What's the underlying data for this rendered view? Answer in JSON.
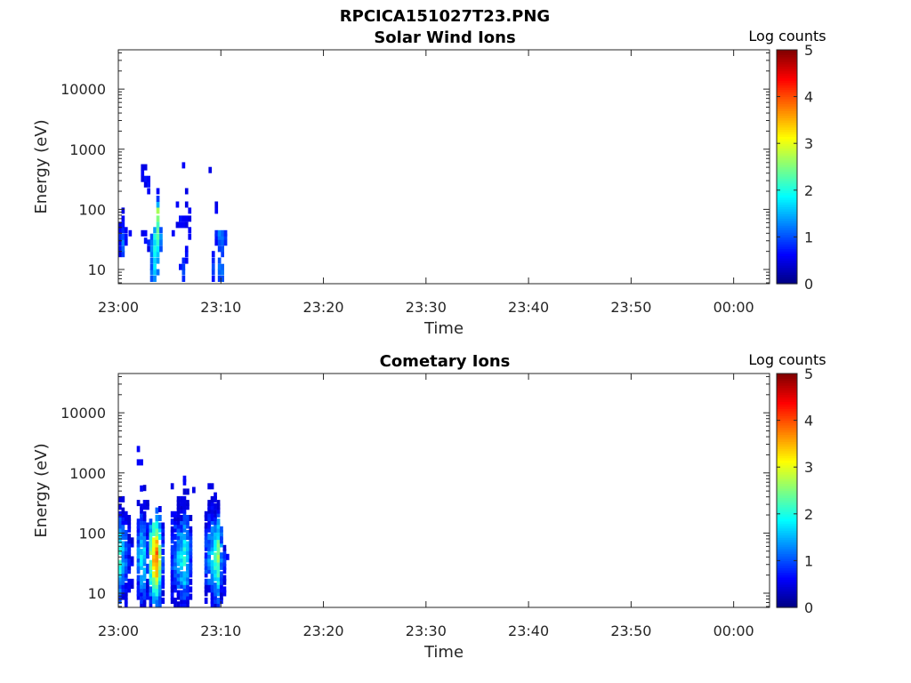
{
  "figure": {
    "title": "RPCICA151027T23.PNG"
  },
  "colors": {
    "axis": "#262626",
    "colormap": "jet"
  },
  "chart_data": [
    {
      "type": "heatmap",
      "title": "Solar Wind Ions",
      "xlabel": "Time",
      "ylabel": "Energy (eV)",
      "x_ticks": [
        "23:00",
        "23:10",
        "23:20",
        "23:30",
        "23:40",
        "23:50",
        "00:00"
      ],
      "xlim_minutes": [
        0,
        63.5
      ],
      "y_ticks": [
        "10",
        "100",
        "1000",
        "10000"
      ],
      "ylim": [
        5.8,
        45000
      ],
      "y_scale": "log",
      "colorbar": {
        "label": "Log counts",
        "ticks": [
          "0",
          "1",
          "2",
          "3",
          "4",
          "5"
        ],
        "range": [
          0,
          5
        ]
      },
      "cells": [
        [
          0.0,
          18,
          0.5
        ],
        [
          0.0,
          22,
          0.7
        ],
        [
          0.0,
          28,
          0.6
        ],
        [
          0.0,
          35,
          0.8
        ],
        [
          0.0,
          45,
          0.6
        ],
        [
          0.0,
          55,
          0.5
        ],
        [
          0.3,
          18,
          0.9
        ],
        [
          0.3,
          22,
          1.1
        ],
        [
          0.3,
          28,
          1.3
        ],
        [
          0.3,
          35,
          1.0
        ],
        [
          0.3,
          45,
          0.8
        ],
        [
          0.3,
          55,
          0.7
        ],
        [
          0.3,
          70,
          0.6
        ],
        [
          0.3,
          95,
          0.5
        ],
        [
          0.6,
          28,
          0.6
        ],
        [
          0.6,
          35,
          0.7
        ],
        [
          0.6,
          45,
          0.6
        ],
        [
          1.0,
          40,
          0.6
        ],
        [
          2.2,
          40,
          0.5
        ],
        [
          2.2,
          320,
          0.5
        ],
        [
          2.2,
          400,
          0.6
        ],
        [
          2.2,
          500,
          0.5
        ],
        [
          2.5,
          30,
          0.7
        ],
        [
          2.5,
          40,
          0.6
        ],
        [
          2.5,
          260,
          0.5
        ],
        [
          2.5,
          320,
          0.7
        ],
        [
          2.5,
          500,
          0.5
        ],
        [
          2.8,
          22,
          0.5
        ],
        [
          2.8,
          28,
          0.8
        ],
        [
          2.8,
          200,
          0.6
        ],
        [
          2.8,
          260,
          0.7
        ],
        [
          2.8,
          320,
          0.6
        ],
        [
          3.1,
          7,
          1.0
        ],
        [
          3.1,
          9,
          1.2
        ],
        [
          3.1,
          11,
          1.0
        ],
        [
          3.1,
          14,
          1.1
        ],
        [
          3.1,
          18,
          1.2
        ],
        [
          3.1,
          22,
          1.3
        ],
        [
          3.1,
          28,
          1.2
        ],
        [
          3.1,
          35,
          1.0
        ],
        [
          3.4,
          7,
          1.3
        ],
        [
          3.4,
          9,
          1.6
        ],
        [
          3.4,
          11,
          1.8
        ],
        [
          3.4,
          14,
          1.7
        ],
        [
          3.4,
          18,
          1.9
        ],
        [
          3.4,
          22,
          2.0
        ],
        [
          3.4,
          28,
          1.7
        ],
        [
          3.4,
          35,
          2.0
        ],
        [
          3.4,
          45,
          1.4
        ],
        [
          3.7,
          9,
          1.2
        ],
        [
          3.7,
          14,
          1.4
        ],
        [
          3.7,
          18,
          1.6
        ],
        [
          3.7,
          22,
          1.8
        ],
        [
          3.7,
          28,
          2.1
        ],
        [
          3.7,
          35,
          2.3
        ],
        [
          3.7,
          45,
          2.4
        ],
        [
          3.7,
          55,
          2.2
        ],
        [
          3.7,
          70,
          2.5
        ],
        [
          3.7,
          95,
          2.7
        ],
        [
          3.7,
          120,
          1.5
        ],
        [
          3.7,
          150,
          0.9
        ],
        [
          3.7,
          200,
          0.6
        ],
        [
          4.0,
          22,
          1.0
        ],
        [
          4.0,
          28,
          1.2
        ],
        [
          4.0,
          35,
          1.4
        ],
        [
          4.0,
          45,
          1.0
        ],
        [
          5.2,
          40,
          0.6
        ],
        [
          5.6,
          55,
          0.5
        ],
        [
          5.6,
          120,
          0.6
        ],
        [
          5.9,
          11,
          0.7
        ],
        [
          5.9,
          55,
          0.6
        ],
        [
          5.9,
          70,
          0.7
        ],
        [
          6.2,
          7,
          0.8
        ],
        [
          6.2,
          9,
          1.0
        ],
        [
          6.2,
          11,
          0.9
        ],
        [
          6.2,
          14,
          0.8
        ],
        [
          6.2,
          55,
          0.6
        ],
        [
          6.2,
          70,
          0.6
        ],
        [
          6.2,
          540,
          0.6
        ],
        [
          6.5,
          14,
          0.6
        ],
        [
          6.5,
          18,
          0.7
        ],
        [
          6.5,
          22,
          0.6
        ],
        [
          6.5,
          55,
          0.5
        ],
        [
          6.5,
          70,
          0.6
        ],
        [
          6.5,
          120,
          0.5
        ],
        [
          6.5,
          200,
          0.5
        ],
        [
          6.8,
          35,
          0.6
        ],
        [
          6.8,
          45,
          0.6
        ],
        [
          6.8,
          70,
          0.5
        ],
        [
          6.8,
          95,
          0.6
        ],
        [
          8.8,
          450,
          0.5
        ],
        [
          9.1,
          7,
          0.7
        ],
        [
          9.1,
          9,
          0.9
        ],
        [
          9.1,
          11,
          1.0
        ],
        [
          9.1,
          14,
          0.8
        ],
        [
          9.1,
          18,
          0.7
        ],
        [
          9.4,
          28,
          0.6
        ],
        [
          9.4,
          35,
          0.7
        ],
        [
          9.4,
          40,
          0.8
        ],
        [
          9.4,
          95,
          0.6
        ],
        [
          9.4,
          120,
          0.5
        ],
        [
          9.7,
          7,
          0.9
        ],
        [
          9.7,
          9,
          1.1
        ],
        [
          9.7,
          11,
          1.2
        ],
        [
          9.7,
          14,
          1.0
        ],
        [
          9.7,
          22,
          0.9
        ],
        [
          9.7,
          28,
          1.0
        ],
        [
          9.7,
          35,
          1.2
        ],
        [
          9.7,
          40,
          1.3
        ],
        [
          10.0,
          7,
          1.0
        ],
        [
          10.0,
          9,
          1.2
        ],
        [
          10.0,
          11,
          1.1
        ],
        [
          10.0,
          18,
          0.9
        ],
        [
          10.0,
          22,
          1.0
        ],
        [
          10.0,
          28,
          1.1
        ],
        [
          10.0,
          35,
          1.2
        ],
        [
          10.0,
          40,
          1.1
        ],
        [
          10.3,
          28,
          0.8
        ],
        [
          10.3,
          35,
          0.9
        ],
        [
          10.3,
          40,
          0.8
        ]
      ]
    },
    {
      "type": "heatmap",
      "title": "Cometary Ions",
      "xlabel": "Time",
      "ylabel": "Energy (eV)",
      "x_ticks": [
        "23:00",
        "23:10",
        "23:20",
        "23:30",
        "23:40",
        "23:50",
        "00:00"
      ],
      "xlim_minutes": [
        0,
        63.5
      ],
      "y_ticks": [
        "10",
        "100",
        "1000",
        "10000"
      ],
      "ylim": [
        5.8,
        45000
      ],
      "y_scale": "log",
      "colorbar": {
        "label": "Log counts",
        "ticks": [
          "0",
          "1",
          "2",
          "3",
          "4",
          "5"
        ],
        "range": [
          0,
          5
        ]
      },
      "profiles": [
        [
          0.0,
          1.5,
          2.0,
          550
        ],
        [
          0.3,
          1.3,
          1.5,
          450
        ],
        [
          0.6,
          1.0,
          1.0,
          400
        ],
        [
          0.9,
          0.8,
          0.6,
          200
        ],
        [
          1.2,
          0.7,
          0.4,
          150
        ],
        [
          1.8,
          1.4,
          1.2,
          500
        ],
        [
          2.1,
          1.8,
          1.8,
          1100
        ],
        [
          2.4,
          1.6,
          1.6,
          800
        ],
        [
          2.7,
          1.3,
          1.0,
          400
        ],
        [
          3.0,
          2.2,
          2.4,
          200
        ],
        [
          3.3,
          2.8,
          3.3,
          150
        ],
        [
          3.6,
          3.0,
          3.8,
          250
        ],
        [
          3.9,
          2.4,
          2.6,
          200
        ],
        [
          4.2,
          1.0,
          0.9,
          150
        ],
        [
          5.1,
          1.0,
          0.9,
          250
        ],
        [
          5.4,
          1.2,
          1.2,
          300
        ],
        [
          5.7,
          1.4,
          1.5,
          500
        ],
        [
          6.0,
          1.5,
          1.7,
          450
        ],
        [
          6.3,
          1.7,
          2.0,
          800
        ],
        [
          6.6,
          1.5,
          1.6,
          550
        ],
        [
          6.9,
          1.0,
          0.9,
          300
        ],
        [
          8.4,
          1.0,
          0.9,
          300
        ],
        [
          8.7,
          1.3,
          1.3,
          450
        ],
        [
          9.0,
          1.5,
          1.6,
          550
        ],
        [
          9.3,
          1.7,
          2.1,
          600
        ],
        [
          9.6,
          1.8,
          2.5,
          350
        ],
        [
          9.9,
          1.2,
          1.3,
          120
        ],
        [
          10.2,
          0.8,
          0.7,
          60
        ]
      ],
      "isolated": [
        [
          1.8,
          2500,
          0.6
        ],
        [
          1.8,
          1500,
          0.6
        ],
        [
          2.1,
          1500,
          0.6
        ],
        [
          2.1,
          550,
          0.6
        ],
        [
          3.9,
          250,
          0.5
        ],
        [
          5.1,
          600,
          0.5
        ],
        [
          6.3,
          800,
          0.6
        ],
        [
          6.3,
          700,
          0.6
        ],
        [
          7.2,
          520,
          0.5
        ],
        [
          8.7,
          600,
          0.5
        ],
        [
          9.0,
          600,
          0.5
        ],
        [
          9.3,
          280,
          0.5
        ],
        [
          10.5,
          40,
          0.6
        ]
      ]
    }
  ]
}
